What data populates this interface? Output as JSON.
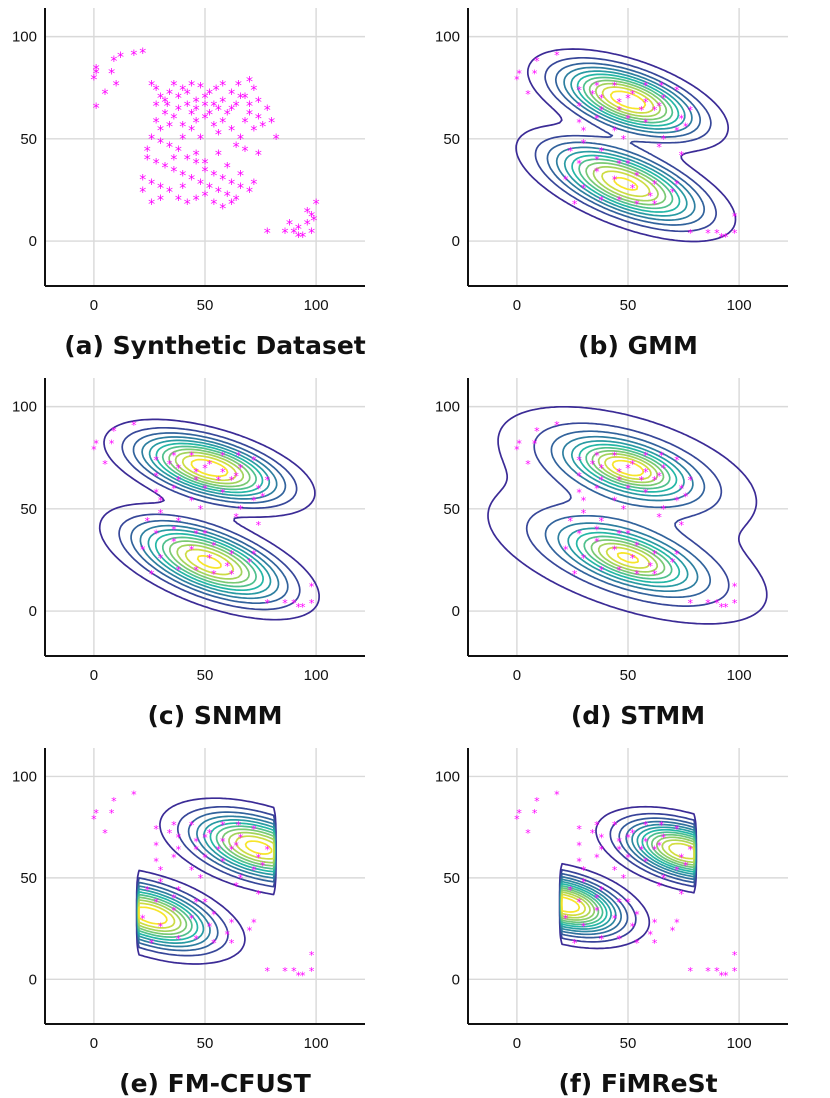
{
  "colors": {
    "points": "#ff00ff",
    "grid": "#d9d9d9",
    "axis": "#111111",
    "contour_low": "#3b2b96",
    "contour_mid": "#25b7a6",
    "contour_high": "#f7e52a"
  },
  "chart_data": [
    {
      "type": "scatter",
      "title": "(a) Synthetic Dataset",
      "xlim": [
        -22,
        122
      ],
      "ylim": [
        -22,
        114
      ],
      "xticks": [
        0,
        50,
        100
      ],
      "yticks": [
        0,
        50,
        100
      ],
      "xtick_labels": [
        "0",
        "50",
        "100"
      ],
      "ytick_labels": [
        "0",
        "50",
        "100"
      ],
      "grid": true,
      "marker": "asterisk",
      "points": [
        [
          1,
          82
        ],
        [
          1,
          84
        ],
        [
          0,
          79
        ],
        [
          1,
          65
        ],
        [
          9,
          88
        ],
        [
          12,
          90
        ],
        [
          18,
          91
        ],
        [
          22,
          92
        ],
        [
          8,
          82
        ],
        [
          10,
          76
        ],
        [
          5,
          72
        ],
        [
          26,
          76
        ],
        [
          28,
          74
        ],
        [
          30,
          70
        ],
        [
          34,
          72
        ],
        [
          33,
          66
        ],
        [
          38,
          70
        ],
        [
          40,
          74
        ],
        [
          44,
          76
        ],
        [
          48,
          75
        ],
        [
          50,
          70
        ],
        [
          55,
          74
        ],
        [
          58,
          68
        ],
        [
          62,
          72
        ],
        [
          65,
          76
        ],
        [
          70,
          78
        ],
        [
          72,
          74
        ],
        [
          68,
          70
        ],
        [
          64,
          66
        ],
        [
          60,
          62
        ],
        [
          56,
          64
        ],
        [
          52,
          62
        ],
        [
          46,
          64
        ],
        [
          42,
          66
        ],
        [
          38,
          64
        ],
        [
          74,
          68
        ],
        [
          78,
          64
        ],
        [
          80,
          58
        ],
        [
          76,
          56
        ],
        [
          82,
          50
        ],
        [
          72,
          54
        ],
        [
          68,
          58
        ],
        [
          66,
          50
        ],
        [
          62,
          54
        ],
        [
          58,
          58
        ],
        [
          54,
          56
        ],
        [
          50,
          60
        ],
        [
          46,
          58
        ],
        [
          44,
          54
        ],
        [
          40,
          56
        ],
        [
          36,
          60
        ],
        [
          32,
          62
        ],
        [
          28,
          58
        ],
        [
          26,
          50
        ],
        [
          30,
          48
        ],
        [
          34,
          46
        ],
        [
          38,
          44
        ],
        [
          42,
          40
        ],
        [
          46,
          38
        ],
        [
          50,
          34
        ],
        [
          54,
          32
        ],
        [
          58,
          30
        ],
        [
          62,
          28
        ],
        [
          66,
          26
        ],
        [
          70,
          24
        ],
        [
          64,
          20
        ],
        [
          60,
          22
        ],
        [
          56,
          24
        ],
        [
          52,
          26
        ],
        [
          48,
          28
        ],
        [
          44,
          30
        ],
        [
          40,
          32
        ],
        [
          36,
          34
        ],
        [
          32,
          36
        ],
        [
          28,
          38
        ],
        [
          24,
          40
        ],
        [
          22,
          30
        ],
        [
          26,
          28
        ],
        [
          30,
          26
        ],
        [
          34,
          24
        ],
        [
          38,
          20
        ],
        [
          42,
          18
        ],
        [
          46,
          20
        ],
        [
          50,
          22
        ],
        [
          54,
          18
        ],
        [
          58,
          16
        ],
        [
          62,
          18
        ],
        [
          30,
          20
        ],
        [
          26,
          18
        ],
        [
          22,
          24
        ],
        [
          78,
          4
        ],
        [
          88,
          8
        ],
        [
          90,
          4
        ],
        [
          92,
          6
        ],
        [
          94,
          2
        ],
        [
          96,
          8
        ],
        [
          98,
          12
        ],
        [
          100,
          18
        ],
        [
          98,
          4
        ],
        [
          96,
          14
        ],
        [
          92,
          2
        ],
        [
          99,
          10
        ],
        [
          86,
          4
        ],
        [
          46,
          42
        ],
        [
          36,
          40
        ],
        [
          56,
          42
        ],
        [
          24,
          44
        ],
        [
          40,
          26
        ],
        [
          50,
          38
        ],
        [
          66,
          32
        ],
        [
          72,
          28
        ],
        [
          60,
          36
        ],
        [
          46,
          68
        ],
        [
          54,
          66
        ],
        [
          62,
          64
        ],
        [
          70,
          62
        ],
        [
          36,
          76
        ],
        [
          42,
          72
        ],
        [
          74,
          60
        ],
        [
          32,
          68
        ],
        [
          58,
          76
        ],
        [
          50,
          66
        ],
        [
          66,
          70
        ],
        [
          70,
          66
        ],
        [
          52,
          72
        ],
        [
          44,
          62
        ],
        [
          28,
          66
        ],
        [
          34,
          56
        ],
        [
          30,
          54
        ],
        [
          40,
          50
        ],
        [
          48,
          50
        ],
        [
          56,
          52
        ],
        [
          64,
          46
        ],
        [
          68,
          44
        ],
        [
          74,
          42
        ]
      ]
    },
    {
      "type": "contour",
      "title": "(b) GMM",
      "xlim": [
        -22,
        122
      ],
      "ylim": [
        -22,
        114
      ],
      "xticks": [
        0,
        50,
        100
      ],
      "yticks": [
        0,
        50,
        100
      ],
      "xtick_labels": [
        "0",
        "50",
        "100"
      ],
      "ytick_labels": [
        "0",
        "50",
        "100"
      ],
      "grid": true,
      "levels": 11,
      "components": [
        {
          "mean": [
            50,
            69
          ],
          "sd_x": 19,
          "sd_y": 10.5,
          "rho": -0.55,
          "weight": 1.0,
          "tail": 2.0,
          "skew": [
            0,
            0
          ],
          "trunc_x_max": null
        },
        {
          "mean": [
            49,
            28
          ],
          "sd_x": 21,
          "sd_y": 12,
          "rho": -0.62,
          "weight": 0.95,
          "tail": 2.0,
          "skew": [
            0,
            0
          ],
          "trunc_x_max": null
        }
      ]
    },
    {
      "type": "contour",
      "title": "(c) SNMM",
      "xlim": [
        -22,
        122
      ],
      "ylim": [
        -22,
        114
      ],
      "xticks": [
        0,
        50,
        100
      ],
      "yticks": [
        0,
        50,
        100
      ],
      "xtick_labels": [
        "0",
        "50",
        "100"
      ],
      "ytick_labels": [
        "0",
        "50",
        "100"
      ],
      "grid": true,
      "levels": 11,
      "components": [
        {
          "mean": [
            52,
            70
          ],
          "sd_x": 20,
          "sd_y": 10,
          "rho": -0.52,
          "weight": 1.0,
          "tail": 2.0,
          "skew": [
            0,
            0
          ],
          "trunc_x_max": null
        },
        {
          "mean": [
            52,
            24
          ],
          "sd_x": 21,
          "sd_y": 12,
          "rho": -0.6,
          "weight": 0.95,
          "tail": 2.0,
          "skew": [
            0,
            0
          ],
          "trunc_x_max": null
        }
      ]
    },
    {
      "type": "contour",
      "title": "(d) STMM",
      "xlim": [
        -22,
        122
      ],
      "ylim": [
        -22,
        114
      ],
      "xticks": [
        0,
        50,
        100
      ],
      "yticks": [
        0,
        50,
        100
      ],
      "xtick_labels": [
        "0",
        "50",
        "100"
      ],
      "ytick_labels": [
        "0",
        "50",
        "100"
      ],
      "grid": true,
      "levels": 11,
      "components": [
        {
          "mean": [
            50,
            70
          ],
          "sd_x": 19,
          "sd_y": 10,
          "rho": -0.5,
          "weight": 1.0,
          "tail": 1.2,
          "skew": [
            0,
            0
          ],
          "trunc_x_max": null
        },
        {
          "mean": [
            50,
            26
          ],
          "sd_x": 21,
          "sd_y": 11,
          "rho": -0.58,
          "weight": 0.95,
          "tail": 1.2,
          "skew": [
            0,
            0
          ],
          "trunc_x_max": null
        }
      ]
    },
    {
      "type": "contour",
      "title": "(e) FM-CFUST",
      "xlim": [
        -22,
        122
      ],
      "ylim": [
        -22,
        114
      ],
      "xticks": [
        0,
        50,
        100
      ],
      "yticks": [
        0,
        50,
        100
      ],
      "xtick_labels": [
        "0",
        "50",
        "100"
      ],
      "ytick_labels": [
        "0",
        "50",
        "100"
      ],
      "grid": true,
      "levels": 11,
      "components": [
        {
          "mean": [
            62,
            68
          ],
          "sd_x": 24,
          "sd_y": 11,
          "rho": -0.55,
          "weight": 1.0,
          "tail": 2.0,
          "skew": [
            0.07,
            0
          ],
          "trunc_x_max": 82
        },
        {
          "mean": [
            38,
            28
          ],
          "sd_x": 24,
          "sd_y": 11,
          "rho": -0.6,
          "weight": 1.0,
          "tail": 2.0,
          "skew": [
            -0.08,
            0
          ],
          "trunc_x_min": 20
        }
      ]
    },
    {
      "type": "contour",
      "title": "(f) FiMReSt",
      "xlim": [
        -22,
        122
      ],
      "ylim": [
        -22,
        114
      ],
      "xticks": [
        0,
        50,
        100
      ],
      "yticks": [
        0,
        50,
        100
      ],
      "xtick_labels": [
        "0",
        "50",
        "100"
      ],
      "ytick_labels": [
        "0",
        "50",
        "100"
      ],
      "grid": true,
      "levels": 13,
      "components": [
        {
          "mean": [
            64,
            66
          ],
          "sd_x": 22,
          "sd_y": 10,
          "rho": -0.55,
          "weight": 1.0,
          "tail": 2.0,
          "skew": [
            0.08,
            0
          ],
          "trunc_x_max": 80
        },
        {
          "mean": [
            34,
            34
          ],
          "sd_x": 24,
          "sd_y": 10,
          "rho": -0.55,
          "weight": 1.0,
          "tail": 2.0,
          "skew": [
            -0.1,
            0
          ],
          "trunc_x_min": 20
        }
      ]
    }
  ],
  "panel_titles": [
    "(a) Synthetic Dataset",
    "(b) GMM",
    "(c) SNMM",
    "(d) STMM",
    "(e) FM-CFUST",
    "(f) FiMReSt"
  ]
}
